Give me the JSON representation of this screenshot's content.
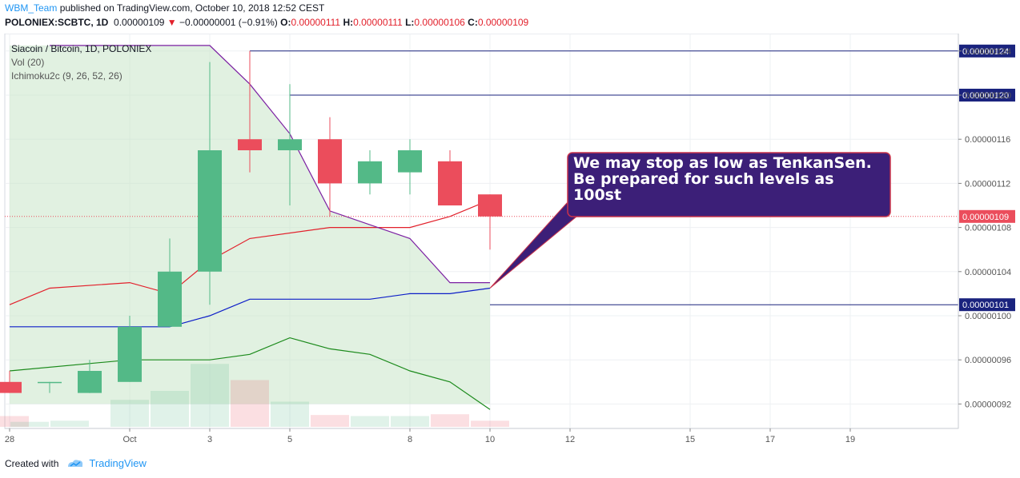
{
  "header": {
    "author": "WBM_Team",
    "published": "published on TradingView.com, October 10, 2018 12:52 CEST",
    "ticker": "POLONIEX:SCBTC, 1D",
    "last": "0.00000109",
    "change": "−0.00000001 (−0.91%)",
    "o_label": "O:",
    "o_value": "0.00000111",
    "h_label": "H:",
    "h_value": "0.00000111",
    "l_label": "L:",
    "l_value": "0.00000106",
    "c_label": "C:",
    "c_value": "0.00000109"
  },
  "legend": {
    "symbol": "Siacoin / Bitcoin, 1D, POLONIEX",
    "vol": "Vol (20)",
    "ichimoku": "Ichimoku2c (9, 26, 52, 26)"
  },
  "annotation": {
    "text": "We may stop as low as TenkanSen. Be prepared for such levels as 100st"
  },
  "footer": {
    "created": "Created with",
    "brand": "TradingView"
  },
  "colors": {
    "up": "#53b987",
    "down": "#eb4d5c",
    "tenkan": "#e2202b",
    "kijun": "#0d1ec8",
    "chikou": "#7b1fa2",
    "spanB": "#1b8a1b",
    "cloud": "#c8e6c9",
    "hline": "#1a237e",
    "label_bg": "#1a237e",
    "annotation_bg": "#3c1f78"
  },
  "chart_data": {
    "type": "candlestick",
    "title": "Siacoin / Bitcoin, 1D, POLONIEX",
    "x_ticks": [
      "28",
      "Oct",
      "3",
      "5",
      "8",
      "10",
      "12",
      "15",
      "17",
      "19"
    ],
    "x_tick_day": [
      0,
      3,
      5,
      7,
      10,
      12,
      14,
      17,
      19,
      21
    ],
    "y_ticks": [
      "0.00000092",
      "0.00000096",
      "0.00000100",
      "0.00000104",
      "0.00000108",
      "0.00000112",
      "0.00000116",
      "0.00000120",
      "0.00000124"
    ],
    "y_tick_values": [
      92,
      96,
      100,
      104,
      108,
      112,
      116,
      120,
      124
    ],
    "ylim": [
      90.5,
      129
    ],
    "y_unit": "1e-8 BTC",
    "candles": [
      {
        "day": 0,
        "o": 94,
        "h": 95,
        "l": 93,
        "c": 93
      },
      {
        "day": 1,
        "o": 94,
        "h": 94,
        "l": 93,
        "c": 94
      },
      {
        "day": 2,
        "o": 94,
        "h": 94,
        "l": 93,
        "c": 94
      },
      {
        "day": 2,
        "o": 93,
        "h": 96,
        "l": 93,
        "c": 95
      },
      {
        "day": 3,
        "o": 94,
        "h": 100,
        "l": 94,
        "c": 99
      },
      {
        "day": 4,
        "o": 99,
        "h": 107,
        "l": 99,
        "c": 104
      },
      {
        "day": 5,
        "o": 104,
        "h": 123,
        "l": 101,
        "c": 115
      },
      {
        "day": 6,
        "o": 116,
        "h": 124,
        "l": 113,
        "c": 115
      },
      {
        "day": 7,
        "o": 115,
        "h": 121,
        "l": 110,
        "c": 116
      },
      {
        "day": 8,
        "o": 116,
        "h": 118,
        "l": 109,
        "c": 112
      },
      {
        "day": 9,
        "o": 112,
        "h": 115,
        "l": 111,
        "c": 114
      },
      {
        "day": 10,
        "o": 113,
        "h": 116,
        "l": 111,
        "c": 115
      },
      {
        "day": 11,
        "o": 114,
        "h": 115,
        "l": 110,
        "c": 110
      },
      {
        "day": 12,
        "o": 111,
        "h": 111,
        "l": 106,
        "c": 109
      }
    ],
    "volume": [
      {
        "day": 0,
        "v": 0.3,
        "up": false
      },
      {
        "day": 0.5,
        "v": 0.14,
        "up": true
      },
      {
        "day": 1.5,
        "v": 0.17,
        "up": true
      },
      {
        "day": 3,
        "v": 0.75,
        "up": true
      },
      {
        "day": 4,
        "v": 1.0,
        "up": true
      },
      {
        "day": 5,
        "v": 1.75,
        "up": true
      },
      {
        "day": 6,
        "v": 1.3,
        "up": false
      },
      {
        "day": 7,
        "v": 0.7,
        "up": true
      },
      {
        "day": 8,
        "v": 0.33,
        "up": false
      },
      {
        "day": 9,
        "v": 0.3,
        "up": true
      },
      {
        "day": 10,
        "v": 0.3,
        "up": true
      },
      {
        "day": 11,
        "v": 0.35,
        "up": false
      },
      {
        "day": 12,
        "v": 0.17,
        "up": false
      }
    ],
    "series": [
      {
        "name": "Tenkan",
        "key": "tenkan",
        "points": [
          [
            0,
            101
          ],
          [
            1,
            102.5
          ],
          [
            3,
            103
          ],
          [
            4,
            102
          ],
          [
            5,
            105
          ],
          [
            6,
            107
          ],
          [
            8,
            108
          ],
          [
            10,
            108
          ],
          [
            11,
            109
          ],
          [
            12,
            110.5
          ]
        ]
      },
      {
        "name": "Kijun",
        "key": "kijun",
        "points": [
          [
            0,
            99
          ],
          [
            4,
            99
          ],
          [
            5,
            100
          ],
          [
            6,
            101.5
          ],
          [
            9,
            101.5
          ],
          [
            10,
            102
          ],
          [
            11,
            102
          ],
          [
            12,
            102.5
          ]
        ]
      },
      {
        "name": "Chikou",
        "key": "chikou",
        "points": [
          [
            1,
            124.5
          ],
          [
            5,
            124.5
          ],
          [
            6,
            121
          ],
          [
            7,
            116.5
          ],
          [
            8,
            109.5
          ],
          [
            10,
            107
          ],
          [
            11,
            103
          ],
          [
            12,
            103
          ]
        ]
      },
      {
        "name": "SenkouB",
        "key": "spanB",
        "points": [
          [
            0,
            95
          ],
          [
            3,
            96
          ],
          [
            4,
            96
          ],
          [
            5,
            96
          ],
          [
            6,
            96.5
          ],
          [
            7,
            98
          ],
          [
            8,
            97
          ],
          [
            9,
            96.5
          ],
          [
            10,
            95
          ],
          [
            11,
            94
          ],
          [
            12,
            91.5
          ]
        ]
      }
    ],
    "cloud_top": [
      [
        0,
        124.5
      ],
      [
        5,
        124.5
      ],
      [
        6,
        121
      ],
      [
        7,
        116.5
      ],
      [
        8,
        109.5
      ],
      [
        10,
        107
      ],
      [
        11,
        103
      ],
      [
        12,
        103
      ]
    ],
    "cloud_bottom": [
      [
        0,
        92
      ],
      [
        12,
        92
      ]
    ],
    "hlines": [
      {
        "value": 124,
        "label": "0.00000124",
        "from_day": 6
      },
      {
        "value": 120,
        "label": "0.00000120",
        "from_day": 7
      },
      {
        "value": 101,
        "label": "0.00000101",
        "from_day": 12
      }
    ],
    "last_price": {
      "value": 109,
      "label": "0.00000109"
    }
  }
}
